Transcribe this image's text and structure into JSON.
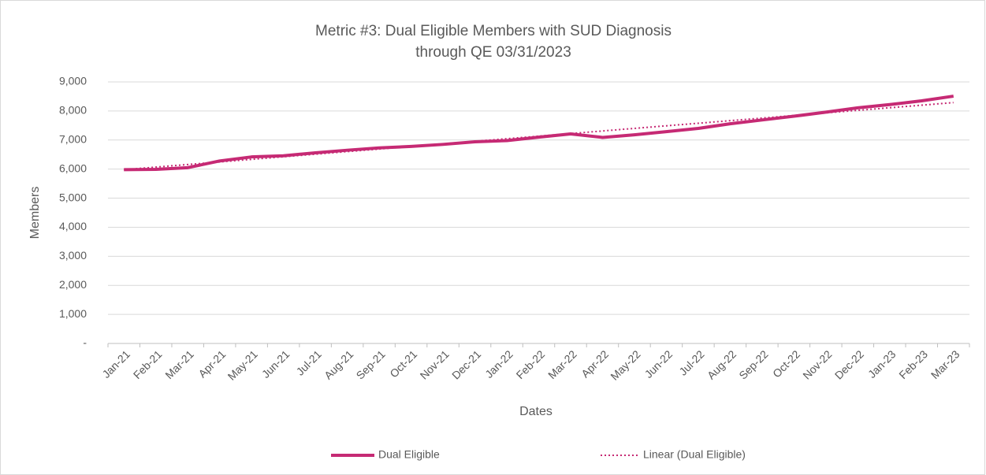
{
  "chart_data": {
    "type": "line",
    "title": "Metric #3: Dual Eligible Members with SUD Diagnosis",
    "subtitle": "through QE 03/31/2023",
    "x_label": "Dates",
    "y_label": "Members",
    "categories": [
      "Jan-21",
      "Feb-21",
      "Mar-21",
      "Apr-21",
      "May-21",
      "Jun-21",
      "Jul-21",
      "Aug-21",
      "Sep-21",
      "Oct-21",
      "Nov-21",
      "Dec-21",
      "Jan-22",
      "Feb-22",
      "Mar-22",
      "Apr-22",
      "May-22",
      "Jun-22",
      "Jul-22",
      "Aug-22",
      "Sep-22",
      "Oct-22",
      "Nov-22",
      "Dec-22",
      "Jan-23",
      "Feb-23",
      "Mar-23"
    ],
    "series": [
      {
        "name": "Dual Eligible",
        "color": "#c62a74",
        "style": "solid",
        "values": [
          5980,
          5990,
          6050,
          6280,
          6420,
          6460,
          6560,
          6650,
          6730,
          6780,
          6850,
          6940,
          6980,
          7100,
          7210,
          7090,
          7180,
          7290,
          7400,
          7560,
          7690,
          7820,
          7960,
          8110,
          8220,
          8350,
          8510
        ]
      },
      {
        "name": "Linear (Dual Eligible)",
        "color": "#c62a74",
        "style": "dotted",
        "values": [
          5980,
          6069,
          6158,
          6246,
          6335,
          6424,
          6513,
          6602,
          6690,
          6779,
          6868,
          6957,
          7046,
          7134,
          7223,
          7312,
          7401,
          7490,
          7578,
          7667,
          7756,
          7845,
          7934,
          8022,
          8111,
          8200,
          8289
        ]
      }
    ],
    "ylim": [
      0,
      9000
    ],
    "yticks": [
      {
        "value": 0,
        "label": "-"
      },
      {
        "value": 1000,
        "label": "1,000"
      },
      {
        "value": 2000,
        "label": "2,000"
      },
      {
        "value": 3000,
        "label": "3,000"
      },
      {
        "value": 4000,
        "label": "4,000"
      },
      {
        "value": 5000,
        "label": "5,000"
      },
      {
        "value": 6000,
        "label": "6,000"
      },
      {
        "value": 7000,
        "label": "7,000"
      },
      {
        "value": 8000,
        "label": "8,000"
      },
      {
        "value": 9000,
        "label": "9,000"
      }
    ],
    "grid": true,
    "legend": "bottom"
  }
}
